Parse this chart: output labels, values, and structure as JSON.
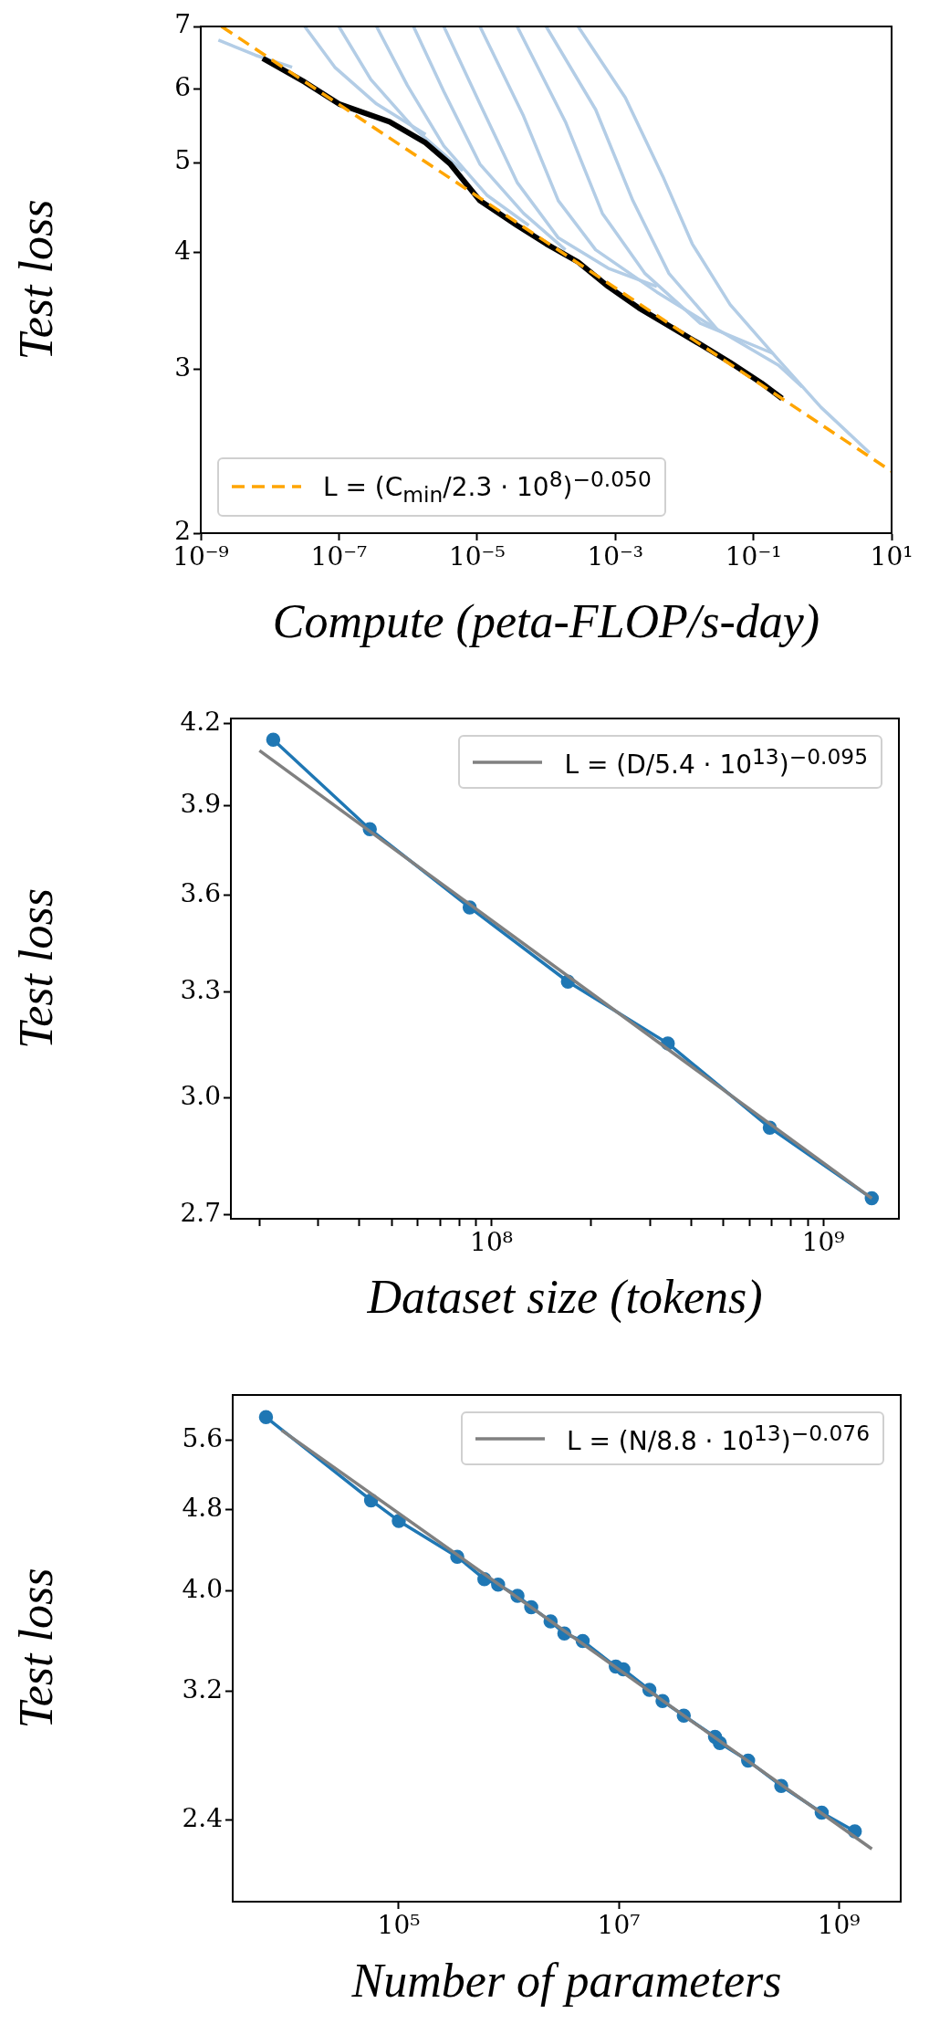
{
  "chart_data": [
    {
      "type": "line",
      "xlabel": "Compute (peta-FLOP/s-day)",
      "ylabel": "Test loss",
      "log": "xy",
      "grid": false,
      "legend": "bottom left",
      "xlim": [
        1e-09,
        10
      ],
      "xticks": [
        {
          "value": 1e-09,
          "label": "10⁻⁹"
        },
        {
          "value": 1e-07,
          "label": "10⁻⁷"
        },
        {
          "value": 1e-05,
          "label": "10⁻⁵"
        },
        {
          "value": 0.001,
          "label": "10⁻³"
        },
        {
          "value": 0.1,
          "label": "10⁻¹"
        },
        {
          "value": 10,
          "label": "10¹"
        }
      ],
      "ylim": [
        2,
        7
      ],
      "yticks": [
        2,
        3,
        4,
        5,
        6,
        7
      ],
      "series": [
        {
          "color": "#b3cde6",
          "x": [
            1.8e-09,
            6.2e-09,
            2.1e-08
          ],
          "values": [
            6.77,
            6.52,
            6.33
          ]
        },
        {
          "color": "#b3cde6",
          "x": [
            3.2e-08,
            8.7e-08,
            3.5e-07,
            1.8e-06
          ],
          "values": [
            7.0,
            6.33,
            5.78,
            5.36
          ]
        },
        {
          "color": "#b3cde6",
          "x": [
            1e-07,
            2.9e-07,
            1.2e-06,
            6.2e-06
          ],
          "values": [
            7.0,
            6.14,
            5.45,
            4.9
          ]
        },
        {
          "color": "#b3cde6",
          "x": [
            3.5e-07,
            9.8e-07,
            3.3e-06,
            1.4e-05,
            5.6e-05
          ],
          "values": [
            7.0,
            6.05,
            5.21,
            4.61,
            4.28
          ]
        },
        {
          "color": "#b3cde6",
          "x": [
            1.2e-06,
            3.3e-06,
            1.1e-05,
            4.7e-05,
            0.00019
          ],
          "values": [
            7.0,
            5.96,
            4.98,
            4.41,
            4.03
          ]
        },
        {
          "color": "#b3cde6",
          "x": [
            3.3e-06,
            1.1e-05,
            3.8e-05,
            0.00015,
            0.00079,
            0.004
          ],
          "values": [
            7.0,
            5.78,
            4.76,
            4.15,
            3.85,
            3.68
          ]
        },
        {
          "color": "#b3cde6",
          "x": [
            1.1e-05,
            4.7e-05,
            0.00015,
            0.00052,
            0.004,
            0.03
          ],
          "values": [
            7.0,
            5.61,
            4.55,
            4.03,
            3.63,
            3.31
          ]
        },
        {
          "color": "#b3cde6",
          "x": [
            3.8e-05,
            0.00019,
            0.00065,
            0.0027,
            0.017,
            0.19
          ],
          "values": [
            7.0,
            5.53,
            4.41,
            3.8,
            3.36,
            3.12
          ]
        },
        {
          "color": "#b3cde6",
          "x": [
            0.0001,
            0.00052,
            0.0018,
            0.006,
            0.03,
            0.23,
            0.51
          ],
          "values": [
            7.0,
            5.7,
            4.55,
            3.8,
            3.31,
            3.03,
            2.87
          ]
        },
        {
          "color": "#b3cde6",
          "x": [
            0.00029,
            0.0014,
            0.0049,
            0.013,
            0.046,
            0.23,
            0.95,
            4.8
          ],
          "values": [
            7.0,
            5.87,
            4.83,
            4.09,
            3.52,
            3.07,
            2.73,
            2.44
          ]
        },
        {
          "color": "#000000",
          "x": [
            7.9e-09,
            3.2e-08,
            1e-07,
            5.4e-07,
            1.8e-06,
            4.1e-06,
            1.1e-05,
            3.8e-05,
            0.0001,
            0.00029,
            0.00079,
            0.0022,
            0.006,
            0.017,
            0.046,
            0.13,
            0.26
          ],
          "values": [
            6.47,
            6.1,
            5.78,
            5.53,
            5.25,
            4.98,
            4.55,
            4.28,
            4.09,
            3.91,
            3.68,
            3.49,
            3.34,
            3.19,
            3.05,
            2.9,
            2.79
          ]
        },
        {
          "name": "L = (C$_{min}$/2.3 · 10$^{8}$)$^{−0.050}$",
          "color": "#ffa500",
          "line_style": "dashed",
          "x": [
            2e-09,
            10
          ],
          "values": [
            7.0,
            2.33
          ]
        }
      ]
    },
    {
      "type": "line",
      "xlabel": "Dataset size (tokens)",
      "ylabel": "Test loss",
      "log": "xy",
      "grid": false,
      "legend": "top right",
      "xlim": [
        16400000.0,
        1690000000.0
      ],
      "xticks": [
        {
          "value": 20000000.0,
          "label": null
        },
        {
          "value": 30000000.0,
          "label": null
        },
        {
          "value": 40000000.0,
          "label": null
        },
        {
          "value": 50000000.0,
          "label": null
        },
        {
          "value": 60000000.0,
          "label": null
        },
        {
          "value": 70000000.0,
          "label": null
        },
        {
          "value": 80000000.0,
          "label": null
        },
        {
          "value": 90000000.0,
          "label": null
        },
        {
          "value": 100000000.0,
          "label": "10⁸"
        },
        {
          "value": 200000000.0,
          "label": null
        },
        {
          "value": 300000000.0,
          "label": null
        },
        {
          "value": 400000000.0,
          "label": null
        },
        {
          "value": 500000000.0,
          "label": null
        },
        {
          "value": 600000000.0,
          "label": null
        },
        {
          "value": 700000000.0,
          "label": null
        },
        {
          "value": 800000000.0,
          "label": null
        },
        {
          "value": 900000000.0,
          "label": null
        },
        {
          "value": 1000000000.0,
          "label": "10⁹"
        }
      ],
      "ylim": [
        2.69,
        4.22
      ],
      "yticks": [
        {
          "value": 2.7,
          "label": "2.7"
        },
        {
          "value": 3,
          "label": "3.0"
        },
        {
          "value": 3.3,
          "label": "3.3"
        },
        {
          "value": 3.6,
          "label": "3.6"
        },
        {
          "value": 3.9,
          "label": "3.9"
        },
        {
          "value": 4.2,
          "label": "4.2"
        }
      ],
      "series": [
        {
          "color": "#1f77b4",
          "marker": "circle",
          "x": [
            22000000.0,
            43000000.0,
            86000000.0,
            170000000.0,
            340000000.0,
            690000000.0,
            1400000000.0
          ],
          "values": [
            4.14,
            3.82,
            3.56,
            3.33,
            3.15,
            2.92,
            2.74
          ]
        },
        {
          "name": "L = (D/5.4 · 10$^{13}$)$^{−0.095}$",
          "color": "#808080",
          "x": [
            20000000.0,
            1400000000.0
          ],
          "values": [
            4.1,
            2.74
          ]
        }
      ]
    },
    {
      "type": "line",
      "xlabel": "Number of parameters",
      "ylabel": "Test loss",
      "log": "xy",
      "grid": false,
      "legend": "top right",
      "xlim": [
        3090.0,
        3660000000.0
      ],
      "xticks": [
        {
          "value": 100000.0,
          "label": "10⁵"
        },
        {
          "value": 10000000.0,
          "label": "10⁷"
        },
        {
          "value": 1000000000.0,
          "label": "10⁹"
        }
      ],
      "ylim": [
        2.0,
        6.2
      ],
      "yticks": [
        {
          "value": 2.4,
          "label": "2.4"
        },
        {
          "value": 3.2,
          "label": "3.2"
        },
        {
          "value": 4,
          "label": "4.0"
        },
        {
          "value": 4.8,
          "label": "4.8"
        },
        {
          "value": 5.6,
          "label": "5.6"
        }
      ],
      "series": [
        {
          "color": "#1f77b4",
          "marker": "circle",
          "x": [
            6200.0,
            56000.0,
            100000.0,
            340000.0,
            600000.0,
            800000.0,
            1200000.0,
            1600000.0,
            2400000.0,
            3200000.0,
            4700000.0,
            9400000.0,
            11000000.0,
            19000000.0,
            25000000.0,
            39000000.0,
            75000000.0,
            83000000.0,
            150000000.0,
            300000000.0,
            700000000.0,
            1400000000.0
          ],
          "values": [
            5.9,
            4.9,
            4.68,
            4.32,
            4.11,
            4.06,
            3.96,
            3.86,
            3.74,
            3.64,
            3.58,
            3.38,
            3.36,
            3.21,
            3.13,
            3.03,
            2.89,
            2.85,
            2.74,
            2.59,
            2.44,
            2.34
          ]
        },
        {
          "name": "L = (N/8.8 · 10$^{13}$)$^{−0.076}$",
          "color": "#808080",
          "x": [
            8600.0,
            2000000000.0
          ],
          "values": [
            5.73,
            2.25
          ]
        }
      ]
    }
  ]
}
